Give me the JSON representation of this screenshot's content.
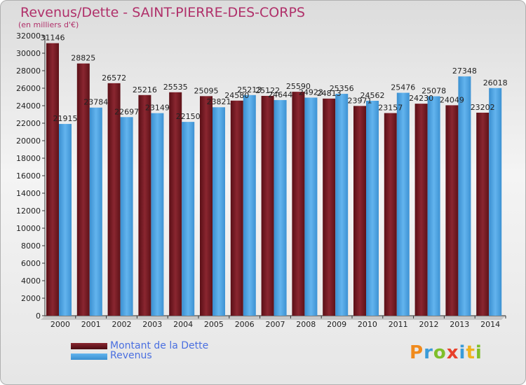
{
  "title": "Revenus/Dette - SAINT-PIERRE-DES-CORPS",
  "subtitle": "(en milliers d'€)",
  "colors": {
    "dette": "#7a1c24",
    "revenus": "#4aa3e2",
    "title": "#b0306a",
    "legend_text": "#4a6fe0"
  },
  "logo": {
    "text": "Proxiti",
    "icon": "proxiti-logo"
  },
  "chart_data": {
    "type": "bar",
    "title": "Revenus/Dette - SAINT-PIERRE-DES-CORPS",
    "ylabel": "(en milliers d'€)",
    "xlabel": "",
    "ylim": [
      0,
      32000
    ],
    "ytick_step": 2000,
    "grid": false,
    "legend_position": "bottom-left",
    "categories": [
      "2000",
      "2001",
      "2002",
      "2003",
      "2004",
      "2005",
      "2006",
      "2007",
      "2008",
      "2009",
      "2010",
      "2011",
      "2012",
      "2013",
      "2014"
    ],
    "series": [
      {
        "name": "Montant de la Dette",
        "color": "#7a1c24",
        "values": [
          31146,
          28825,
          26572,
          25216,
          25535,
          25095,
          24580,
          25122,
          25590,
          24813,
          23971,
          23157,
          24230,
          24049,
          23202
        ]
      },
      {
        "name": "Revenus",
        "color": "#4aa3e2",
        "values": [
          21915,
          23784,
          22697,
          23149,
          22150,
          23821,
          25213,
          24644,
          24923,
          25356,
          24562,
          25476,
          25078,
          27348,
          26018
        ]
      }
    ],
    "data_labels": [
      [
        "31146",
        "28825",
        "26572",
        "25216",
        "25535",
        "25095",
        "24580",
        "25122",
        "25590",
        "24813",
        "23971",
        "23157",
        "24230",
        "24049",
        "23202"
      ],
      [
        "21915",
        "23784",
        "22697",
        "23149",
        "22150",
        "23821",
        "25213",
        "24644",
        "24923",
        "25356",
        "24562",
        "25476",
        "25078",
        "27348",
        "26018"
      ]
    ]
  }
}
